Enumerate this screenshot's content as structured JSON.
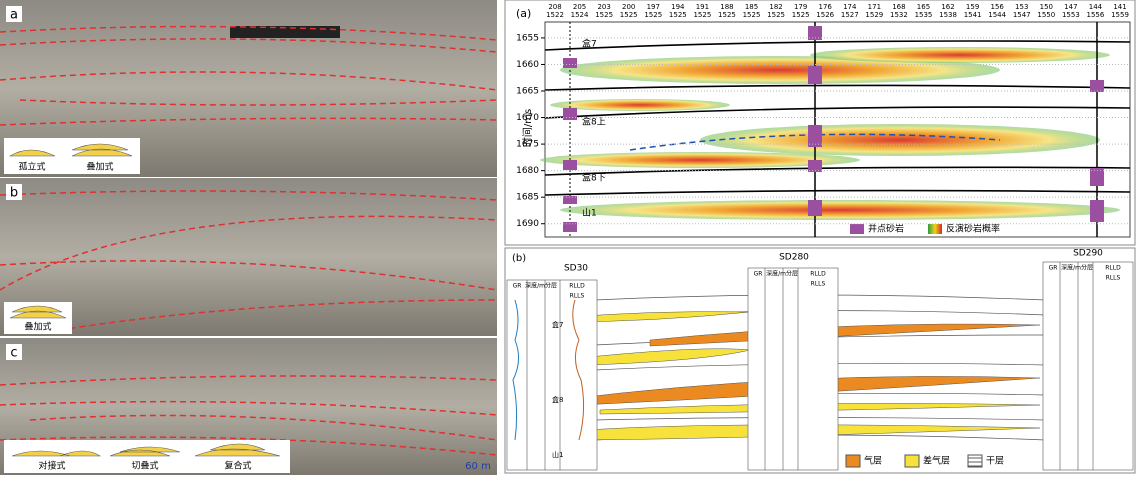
{
  "photos": {
    "a": {
      "label": "a",
      "legend": [
        "孤立式",
        "叠加式"
      ]
    },
    "b": {
      "label": "b",
      "legend": [
        "叠加式"
      ]
    },
    "c": {
      "label": "c",
      "legend": [
        "对接式",
        "切叠式",
        "复合式"
      ],
      "scale": "60 m"
    }
  },
  "seismic": {
    "label": "(a)",
    "ylabel": "时间/ms",
    "ylim": [
      1652,
      1692.5
    ],
    "yticks": [
      1655,
      1660,
      1665,
      1670,
      1675,
      1680,
      1685,
      1690
    ],
    "trace_top": [
      "208",
      "205",
      "203",
      "200",
      "197",
      "194",
      "191",
      "188",
      "185",
      "182",
      "179",
      "176",
      "174",
      "171",
      "168",
      "165",
      "162",
      "159",
      "156",
      "153",
      "150",
      "147",
      "144",
      "141"
    ],
    "trace_bottom": [
      "1522",
      "1524",
      "1525",
      "1525",
      "1525",
      "1525",
      "1525",
      "1525",
      "1525",
      "1525",
      "1525",
      "1526",
      "1527",
      "1529",
      "1532",
      "1535",
      "1538",
      "1541",
      "1544",
      "1547",
      "1550",
      "1553",
      "1556",
      "1559"
    ],
    "horizons": [
      "盒7",
      "盒8上",
      "盒8下",
      "山1"
    ],
    "legend": [
      "井点砂岩",
      "反演砂岩概率"
    ]
  },
  "wells": {
    "label": "(b)",
    "names": [
      "SD30",
      "SD280",
      "SD290"
    ],
    "headers": [
      "GR",
      "深度/m",
      "分层",
      "RLLD",
      "RLLS"
    ],
    "layers": [
      "盒7",
      "盒8",
      "山1"
    ],
    "legend": [
      "气层",
      "差气层",
      "干层"
    ]
  }
}
